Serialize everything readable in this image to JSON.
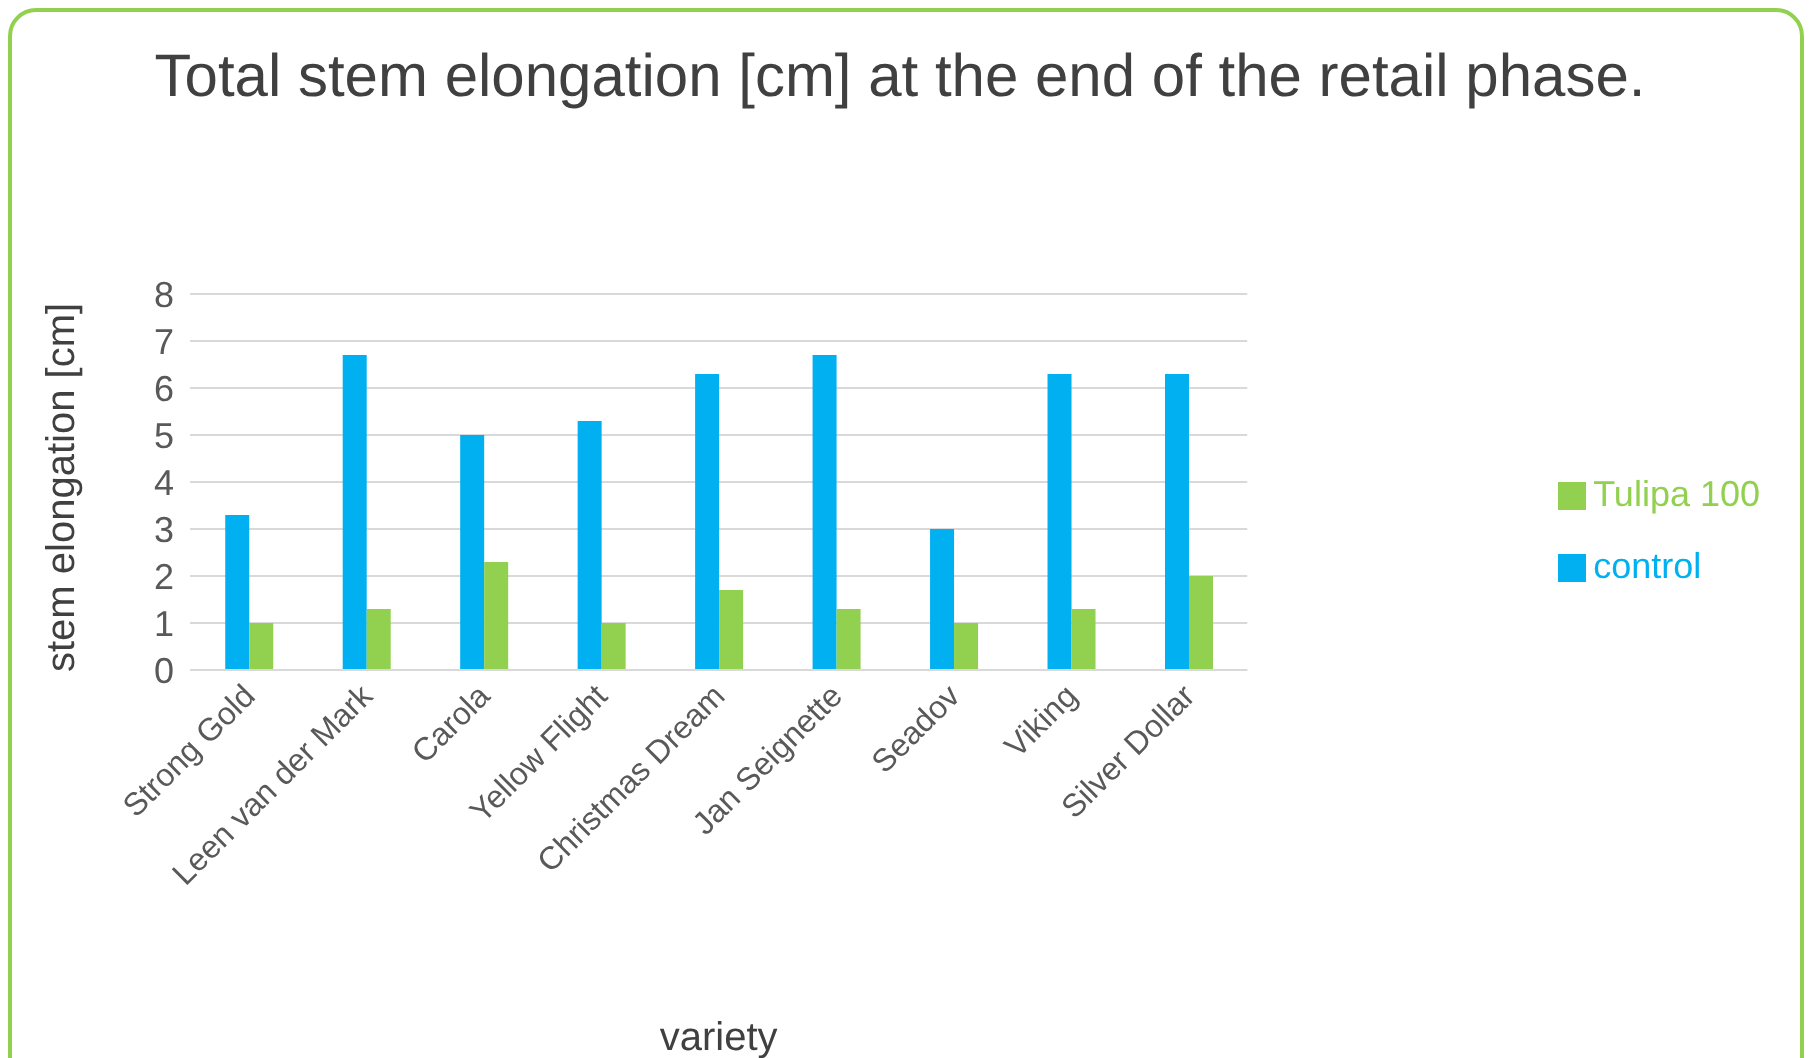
{
  "chart_data": {
    "type": "bar",
    "title": "Total stem elongation [cm] at the end of the retail phase.",
    "xlabel": "variety",
    "ylabel": "stem elongation [cm]",
    "categories": [
      "Strong Gold",
      "Leen van der Mark",
      "Carola",
      "Yellow Flight",
      "Christmas Dream",
      "Jan Seignette",
      "Seadov",
      "Viking",
      "Silver Dollar"
    ],
    "series": [
      {
        "name": "control",
        "color": "#00b0f0",
        "values": [
          3.3,
          6.7,
          5.0,
          5.3,
          6.3,
          6.7,
          3.0,
          6.3,
          6.3
        ]
      },
      {
        "name": "Tulipa 100",
        "color": "#92d050",
        "values": [
          1.0,
          1.3,
          2.3,
          1.0,
          1.7,
          1.3,
          1.0,
          1.3,
          2.0
        ]
      }
    ],
    "ylim": [
      0,
      8
    ],
    "yticks": [
      0,
      1,
      2,
      3,
      4,
      5,
      6,
      7,
      8
    ],
    "grid": "y",
    "legend": "right"
  }
}
